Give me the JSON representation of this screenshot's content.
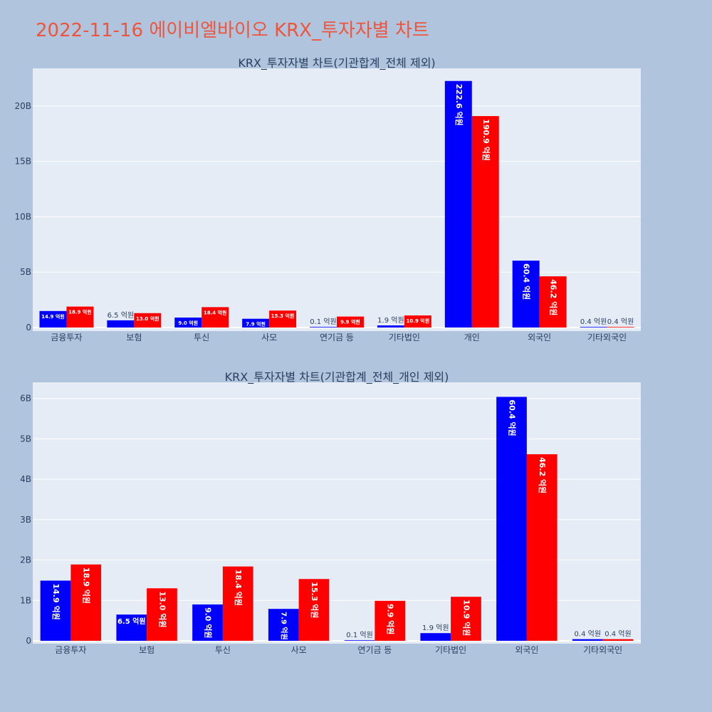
{
  "title": "2022-11-16 에이비엘바이오 KRX_투자자별 차트",
  "colors": {
    "series1": "#0000ff",
    "series2": "#ff0000",
    "plot_bg": "#e5ecf6",
    "page_bg": "#b0c4de",
    "title": "#ef553b"
  },
  "chart_data": [
    {
      "type": "bar",
      "title": "KRX_투자자별 차트(기관합계_전체 제외)",
      "categories": [
        "금융투자",
        "보험",
        "투신",
        "사모",
        "연기금 등",
        "기타법인",
        "개인",
        "외국인",
        "기타외국인"
      ],
      "series": [
        {
          "values": [
            1.49,
            0.65,
            0.9,
            0.79,
            0.01,
            0.19,
            22.26,
            6.04,
            0.04
          ],
          "labels": [
            "14.9 억원",
            "6.5 억원",
            "9.0 억원",
            "7.9 억원",
            "0.1 억원",
            "1.9 억원",
            "222.6 억원",
            "60.4 억원",
            "0.4 억원"
          ]
        },
        {
          "values": [
            1.89,
            1.3,
            1.84,
            1.53,
            0.99,
            1.09,
            19.09,
            4.62,
            0.04
          ],
          "labels": [
            "18.9 억원",
            "13.0 억원",
            "18.4 억원",
            "15.3 억원",
            "9.9 억원",
            "10.9 억원",
            "190.9 억원",
            "46.2 억원",
            "0.4 억원"
          ]
        }
      ],
      "ylim": [
        0,
        23.4
      ],
      "yticks": [
        0,
        5,
        10,
        15,
        20
      ],
      "ytick_labels": [
        "0",
        "5B",
        "10B",
        "15B",
        "20B"
      ],
      "grid": true
    },
    {
      "type": "bar",
      "title": "KRX_투자자별 차트(기관합계_전체_개인 제외)",
      "categories": [
        "금융투자",
        "보험",
        "투신",
        "사모",
        "연기금 등",
        "기타법인",
        "외국인",
        "기타외국인"
      ],
      "series": [
        {
          "values": [
            1.49,
            0.65,
            0.9,
            0.79,
            0.01,
            0.19,
            6.04,
            0.04
          ],
          "labels": [
            "14.9 억원",
            "6.5 억원",
            "9.0 억원",
            "7.9 억원",
            "0.1 억원",
            "1.9 억원",
            "60.4 억원",
            "0.4 억원"
          ]
        },
        {
          "values": [
            1.89,
            1.3,
            1.84,
            1.53,
            0.99,
            1.09,
            4.62,
            0.04
          ],
          "labels": [
            "18.9 억원",
            "13.0 억원",
            "18.4 억원",
            "15.3 억원",
            "9.9 억원",
            "10.9 억원",
            "46.2 억원",
            "0.4 억원"
          ]
        }
      ],
      "ylim": [
        0,
        6.4
      ],
      "yticks": [
        0,
        1,
        2,
        3,
        4,
        5,
        6
      ],
      "ytick_labels": [
        "0",
        "1B",
        "2B",
        "3B",
        "4B",
        "5B",
        "6B"
      ],
      "grid": true
    }
  ]
}
